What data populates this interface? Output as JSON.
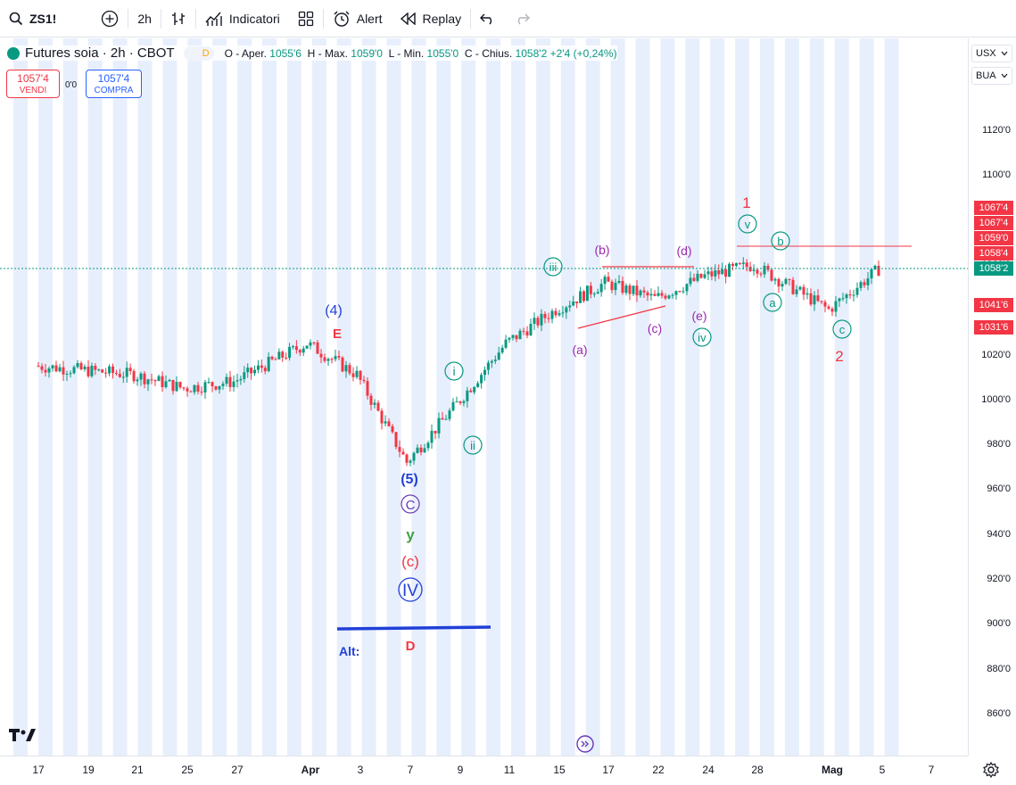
{
  "toolbar": {
    "symbol": "ZS1!",
    "interval": "2h",
    "indicators_label": "Indicatori",
    "alert_label": "Alert",
    "replay_label": "Replay"
  },
  "legend": {
    "title": "Futures soia · 2h · CBOT",
    "badge": "D",
    "open_label": "O - Aper.",
    "open": "1055'6",
    "high_label": "H - Max.",
    "high": "1059'0",
    "low_label": "L - Min.",
    "low": "1055'0",
    "close_label": "C - Chius.",
    "close": "1058'2",
    "change": "+2'4 (+0,24%)"
  },
  "trade": {
    "sell_price": "1057'4",
    "sell_label": "VENDI",
    "spread": "0'0",
    "buy_price": "1057'4",
    "buy_label": "COMPRA"
  },
  "price_axis": {
    "currency": "USX",
    "unit": "BUA",
    "ticks": [
      "1120'0",
      "1100'0",
      "1080'0",
      "1060'0",
      "1040'0",
      "1020'0",
      "1000'0",
      "980'0",
      "960'0",
      "940'0",
      "920'0",
      "900'0",
      "880'0",
      "860'0"
    ],
    "labels": [
      {
        "text": "1067'4",
        "color": "#f23645",
        "price": 1067.5
      },
      {
        "text": "1067'4",
        "color": "#f23645",
        "price": 1067.5
      },
      {
        "text": "1059'0",
        "color": "#f23645",
        "price": 1059.0
      },
      {
        "text": "1058'4",
        "color": "#f23645",
        "price": 1058.5
      },
      {
        "text": "1058'2",
        "color": "#089981",
        "price": 1058.25
      },
      {
        "text": "1041'6",
        "color": "#f23645",
        "price": 1041.75
      },
      {
        "text": "1031'6",
        "color": "#f23645",
        "price": 1031.75
      }
    ]
  },
  "time_axis": [
    "17",
    "19",
    "21",
    "25",
    "27",
    "Apr",
    "3",
    "7",
    "9",
    "11",
    "15",
    "17",
    "22",
    "24",
    "28",
    "Mag",
    "5",
    "7"
  ],
  "waves": {
    "w4": "(4)",
    "wE": "E",
    "w5": "(5)",
    "wCc": "C",
    "wy": "y",
    "wc_paren": "(c)",
    "wIV": "IV",
    "alt": "Alt:",
    "wD": "D",
    "wi": "i",
    "wii": "ii",
    "wiii": "iii",
    "wiv": "iv",
    "wv": "v",
    "wa": "(a)",
    "wb": "(b)",
    "wc": "(c)",
    "wd": "(d)",
    "we": "(e)",
    "w1": "1",
    "w2": "2",
    "sa": "a",
    "sb": "b",
    "sc": "c"
  },
  "chart_data": {
    "type": "candlestick",
    "title": "Futures soia · 2h · CBOT",
    "ylim": [
      850,
      1130
    ],
    "last_price": 1058.25,
    "path": [
      {
        "x": "17",
        "y": 1015
      },
      {
        "x": "19",
        "y": 1013
      },
      {
        "x": "21",
        "y": 1011
      },
      {
        "x": "25",
        "y": 1005
      },
      {
        "x": "27",
        "y": 1008
      },
      {
        "x": "Apr",
        "y": 1025
      },
      {
        "x": "3",
        "y": 1011
      },
      {
        "x": "7",
        "y": 972
      },
      {
        "x": "9",
        "y": 998
      },
      {
        "x": "11",
        "y": 1025
      },
      {
        "x": "15",
        "y": 1040
      },
      {
        "x": "17",
        "y": 1052
      },
      {
        "x": "22",
        "y": 1045
      },
      {
        "x": "24",
        "y": 1055
      },
      {
        "x": "28",
        "y": 1060
      },
      {
        "x": "Mag",
        "y": 1040
      },
      {
        "x": "5",
        "y": 1058
      }
    ]
  },
  "colors": {
    "up": "#089981",
    "down": "#f23645",
    "accent": "#2962ff",
    "purple": "#9c27b0",
    "session": "#e8effc"
  }
}
